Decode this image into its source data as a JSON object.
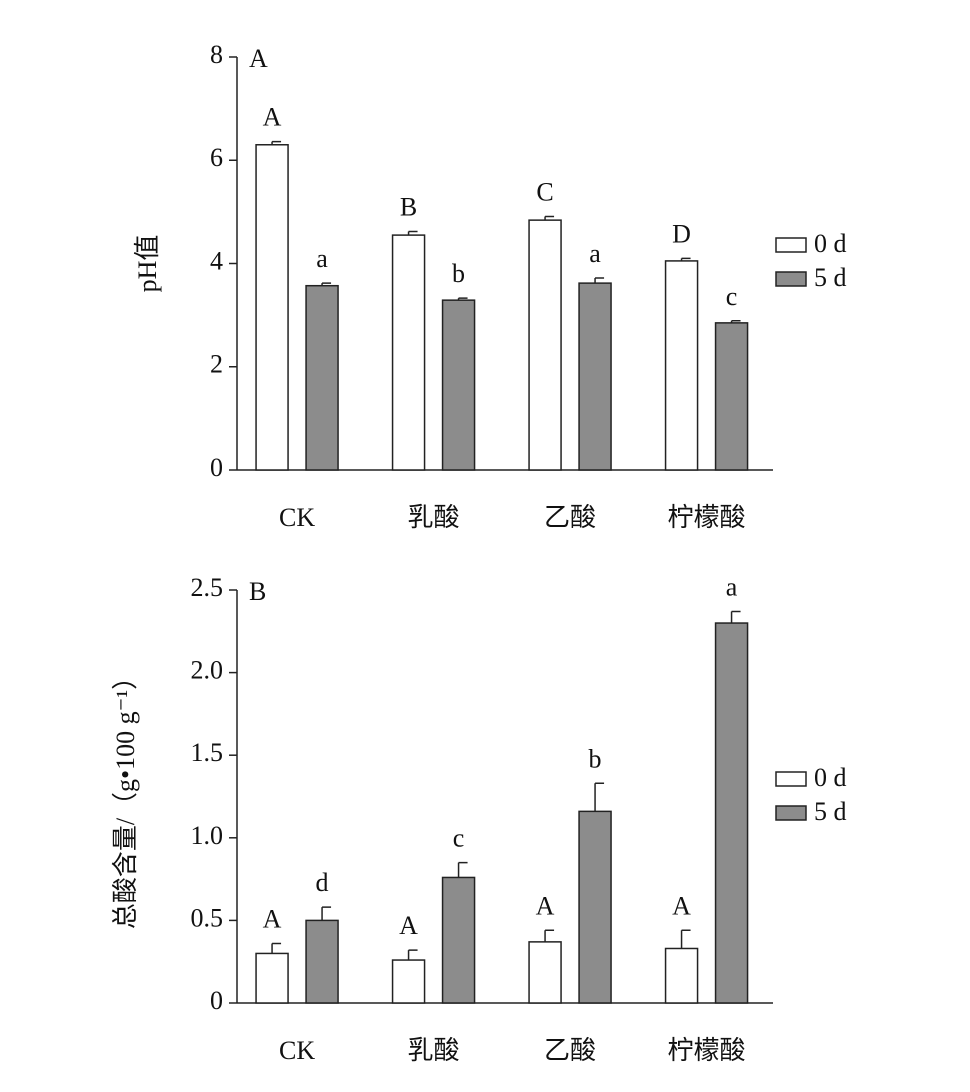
{
  "chart_data": [
    {
      "type": "bar",
      "panel": "A",
      "ylabel": "pH值",
      "categories": [
        "CK",
        "乳酸",
        "乙酸",
        "柠檬酸"
      ],
      "series": [
        {
          "name": "0 d",
          "color": "#ffffff",
          "values": [
            6.3,
            4.55,
            4.84,
            4.05
          ],
          "errors": [
            0.06,
            0.07,
            0.07,
            0.05
          ],
          "letters": [
            "A",
            "B",
            "C",
            "D"
          ]
        },
        {
          "name": "5 d",
          "color": "#8c8c8c",
          "values": [
            3.57,
            3.29,
            3.62,
            2.85
          ],
          "errors": [
            0.05,
            0.04,
            0.1,
            0.04
          ],
          "letters": [
            "a",
            "b",
            "a",
            "c"
          ]
        }
      ],
      "ylim": [
        0,
        8
      ],
      "yticks": [
        0,
        2,
        4,
        6,
        8
      ]
    },
    {
      "type": "bar",
      "panel": "B",
      "ylabel": "总酸含量/（g•100 g⁻¹）",
      "categories": [
        "CK",
        "乳酸",
        "乙酸",
        "柠檬酸"
      ],
      "series": [
        {
          "name": "0 d",
          "color": "#ffffff",
          "values": [
            0.3,
            0.26,
            0.37,
            0.33
          ],
          "errors": [
            0.06,
            0.06,
            0.07,
            0.11
          ],
          "letters": [
            "A",
            "A",
            "A",
            "A"
          ]
        },
        {
          "name": "5 d",
          "color": "#8c8c8c",
          "values": [
            0.5,
            0.76,
            1.16,
            2.3
          ],
          "errors": [
            0.08,
            0.09,
            0.17,
            0.07
          ],
          "letters": [
            "d",
            "c",
            "b",
            "a"
          ]
        }
      ],
      "ylim": [
        0,
        2.5
      ],
      "yticks": [
        0,
        0.5,
        {
          "value": 1,
          "label": "1.0"
        },
        1.5,
        {
          "value": 2,
          "label": "2.0"
        },
        2.5
      ]
    }
  ]
}
